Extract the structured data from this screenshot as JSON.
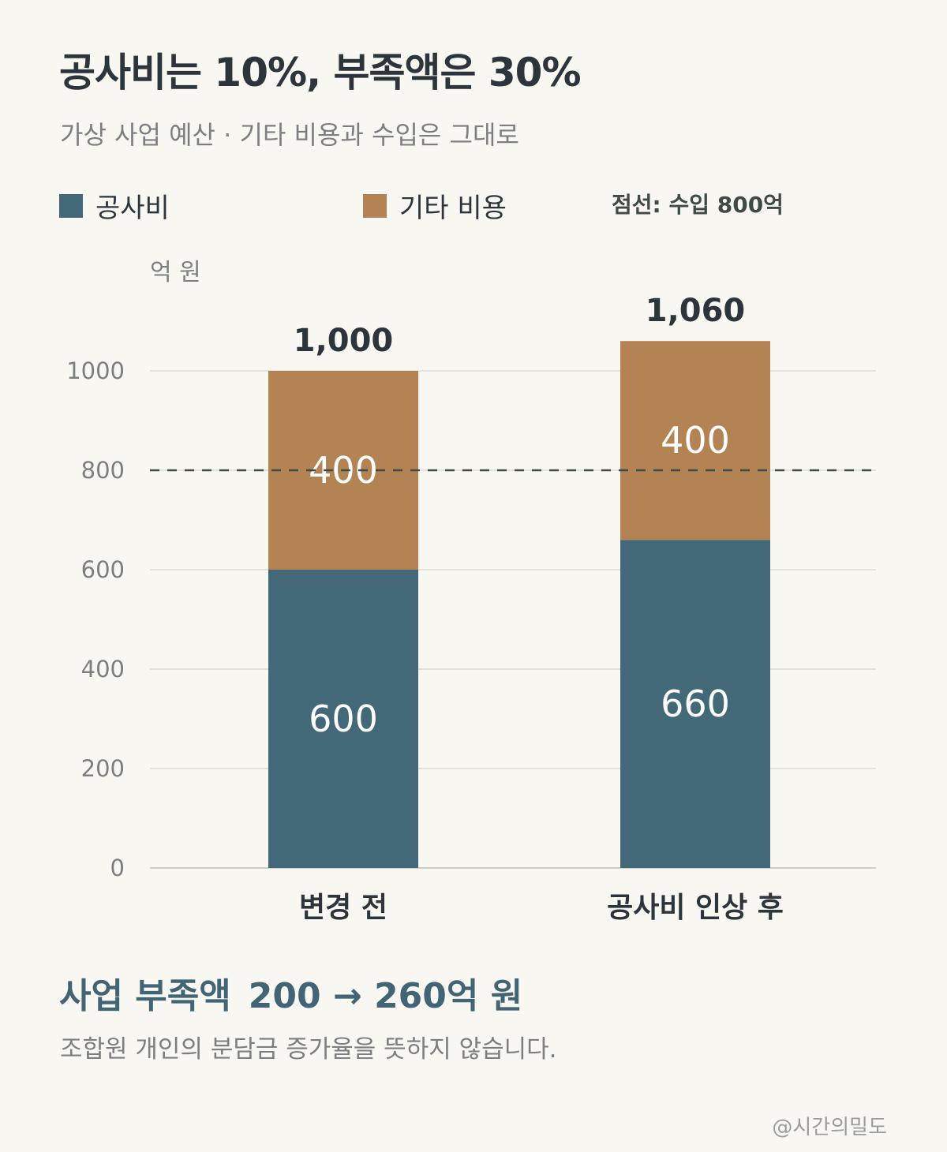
{
  "title": "공사비는 10%, 부족액은 30%",
  "subtitle": "가상 사업 예산 · 기타 비용과 수입은 그대로",
  "legend": {
    "items": [
      {
        "label": "공사비",
        "color": "#436878"
      },
      {
        "label": "기타 비용",
        "color": "#b48354"
      }
    ],
    "note": "점선: 수입 800억"
  },
  "chart_data": {
    "type": "bar",
    "stacked": true,
    "unit_label": "억 원",
    "categories": [
      "변경 전",
      "공사비 인상 후"
    ],
    "series": [
      {
        "name": "공사비",
        "values": [
          600,
          660
        ],
        "color": "#436878"
      },
      {
        "name": "기타 비용",
        "values": [
          400,
          400
        ],
        "color": "#b48354"
      }
    ],
    "segment_labels": [
      [
        "600",
        "660"
      ],
      [
        "400",
        "400"
      ]
    ],
    "totals": [
      1000,
      1060
    ],
    "total_labels": [
      "1,000",
      "1,060"
    ],
    "yticks": [
      0,
      200,
      400,
      600,
      800,
      1000
    ],
    "ylim": [
      0,
      1000
    ],
    "grid": true,
    "reference_line": {
      "value": 800,
      "style": "dashed",
      "color": "#3e4a44"
    }
  },
  "summary": {
    "label": "사업 부족액",
    "value": "200 → 260억 원"
  },
  "note": "조합원 개인의 분담금 증가율을 뜻하지 않습니다.",
  "credit": "@시간의밀도"
}
